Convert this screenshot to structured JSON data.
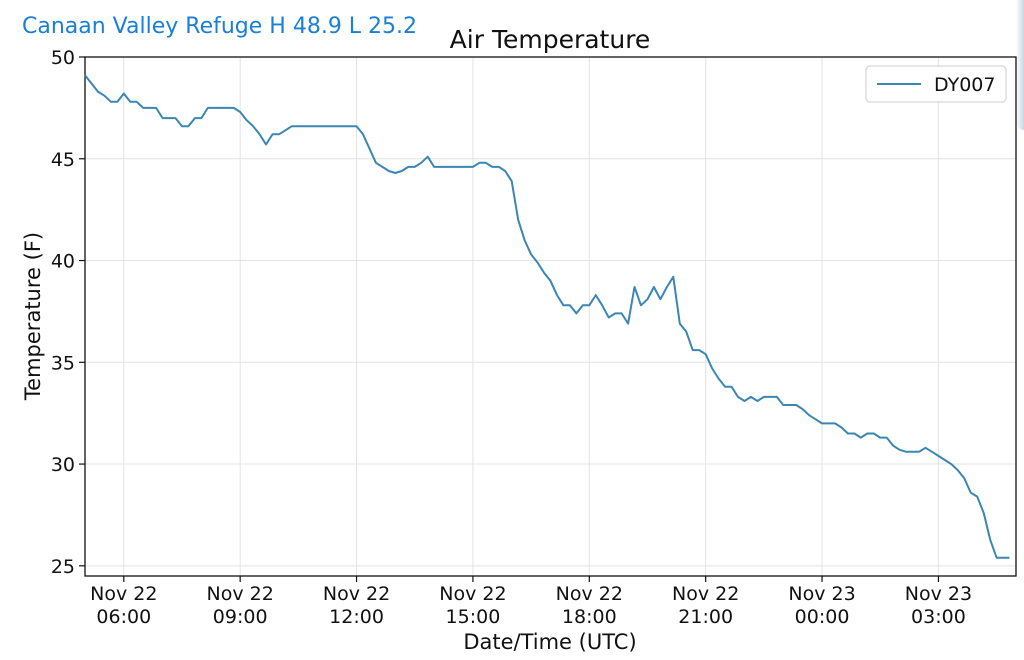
{
  "header": {
    "station_text": "Canaan Valley Refuge H 48.9 L 25.2"
  },
  "chart_data": {
    "type": "line",
    "title": "Air Temperature",
    "xlabel": "Date/Time (UTC)",
    "ylabel": "Temperature (F)",
    "ylim": [
      24.5,
      50
    ],
    "xlim": [
      "2023-11-22T05:00",
      "2023-11-23T05:00"
    ],
    "yticks": [
      25,
      30,
      35,
      40,
      45,
      50
    ],
    "xticks": [
      {
        "t": "2023-11-22T06:00",
        "line1": "Nov 22",
        "line2": "06:00"
      },
      {
        "t": "2023-11-22T09:00",
        "line1": "Nov 22",
        "line2": "09:00"
      },
      {
        "t": "2023-11-22T12:00",
        "line1": "Nov 22",
        "line2": "12:00"
      },
      {
        "t": "2023-11-22T15:00",
        "line1": "Nov 22",
        "line2": "15:00"
      },
      {
        "t": "2023-11-22T18:00",
        "line1": "Nov 22",
        "line2": "18:00"
      },
      {
        "t": "2023-11-22T21:00",
        "line1": "Nov 22",
        "line2": "21:00"
      },
      {
        "t": "2023-11-23T00:00",
        "line1": "Nov 23",
        "line2": "00:00"
      },
      {
        "t": "2023-11-23T03:00",
        "line1": "Nov 23",
        "line2": "03:00"
      }
    ],
    "grid": true,
    "legend_position": "top-right",
    "series": [
      {
        "name": "DY007",
        "color": "#3b86b3",
        "points": [
          [
            "2023-11-22T05:00",
            49.1
          ],
          [
            "2023-11-22T05:10",
            48.7
          ],
          [
            "2023-11-22T05:20",
            48.3
          ],
          [
            "2023-11-22T05:30",
            48.1
          ],
          [
            "2023-11-22T05:40",
            47.8
          ],
          [
            "2023-11-22T05:50",
            47.8
          ],
          [
            "2023-11-22T06:00",
            48.2
          ],
          [
            "2023-11-22T06:10",
            47.8
          ],
          [
            "2023-11-22T06:20",
            47.8
          ],
          [
            "2023-11-22T06:30",
            47.5
          ],
          [
            "2023-11-22T06:40",
            47.5
          ],
          [
            "2023-11-22T06:50",
            47.5
          ],
          [
            "2023-11-22T07:00",
            47.0
          ],
          [
            "2023-11-22T07:10",
            47.0
          ],
          [
            "2023-11-22T07:20",
            47.0
          ],
          [
            "2023-11-22T07:30",
            46.6
          ],
          [
            "2023-11-22T07:40",
            46.6
          ],
          [
            "2023-11-22T07:50",
            47.0
          ],
          [
            "2023-11-22T08:00",
            47.0
          ],
          [
            "2023-11-22T08:10",
            47.5
          ],
          [
            "2023-11-22T08:20",
            47.5
          ],
          [
            "2023-11-22T08:30",
            47.5
          ],
          [
            "2023-11-22T08:40",
            47.5
          ],
          [
            "2023-11-22T08:50",
            47.5
          ],
          [
            "2023-11-22T09:00",
            47.3
          ],
          [
            "2023-11-22T09:10",
            46.9
          ],
          [
            "2023-11-22T09:20",
            46.6
          ],
          [
            "2023-11-22T09:30",
            46.2
          ],
          [
            "2023-11-22T09:40",
            45.7
          ],
          [
            "2023-11-22T09:50",
            46.2
          ],
          [
            "2023-11-22T10:00",
            46.2
          ],
          [
            "2023-11-22T10:10",
            46.4
          ],
          [
            "2023-11-22T10:20",
            46.6
          ],
          [
            "2023-11-22T10:30",
            46.6
          ],
          [
            "2023-11-22T10:40",
            46.6
          ],
          [
            "2023-11-22T10:50",
            46.6
          ],
          [
            "2023-11-22T11:00",
            46.6
          ],
          [
            "2023-11-22T11:10",
            46.6
          ],
          [
            "2023-11-22T11:20",
            46.6
          ],
          [
            "2023-11-22T11:30",
            46.6
          ],
          [
            "2023-11-22T11:40",
            46.6
          ],
          [
            "2023-11-22T11:50",
            46.6
          ],
          [
            "2023-11-22T12:00",
            46.6
          ],
          [
            "2023-11-22T12:10",
            46.2
          ],
          [
            "2023-11-22T12:20",
            45.5
          ],
          [
            "2023-11-22T12:30",
            44.8
          ],
          [
            "2023-11-22T12:40",
            44.6
          ],
          [
            "2023-11-22T12:50",
            44.4
          ],
          [
            "2023-11-22T13:00",
            44.3
          ],
          [
            "2023-11-22T13:10",
            44.4
          ],
          [
            "2023-11-22T13:20",
            44.6
          ],
          [
            "2023-11-22T13:30",
            44.6
          ],
          [
            "2023-11-22T13:40",
            44.8
          ],
          [
            "2023-11-22T13:50",
            45.1
          ],
          [
            "2023-11-22T14:00",
            44.6
          ],
          [
            "2023-11-22T14:10",
            44.6
          ],
          [
            "2023-11-22T14:20",
            44.6
          ],
          [
            "2023-11-22T14:30",
            44.6
          ],
          [
            "2023-11-22T14:40",
            44.6
          ],
          [
            "2023-11-22T14:50",
            44.6
          ],
          [
            "2023-11-22T15:00",
            44.6
          ],
          [
            "2023-11-22T15:10",
            44.8
          ],
          [
            "2023-11-22T15:20",
            44.8
          ],
          [
            "2023-11-22T15:30",
            44.6
          ],
          [
            "2023-11-22T15:40",
            44.6
          ],
          [
            "2023-11-22T15:50",
            44.4
          ],
          [
            "2023-11-22T16:00",
            43.9
          ],
          [
            "2023-11-22T16:10",
            42.0
          ],
          [
            "2023-11-22T16:20",
            41.0
          ],
          [
            "2023-11-22T16:30",
            40.3
          ],
          [
            "2023-11-22T16:40",
            39.9
          ],
          [
            "2023-11-22T16:50",
            39.4
          ],
          [
            "2023-11-22T17:00",
            39.0
          ],
          [
            "2023-11-22T17:10",
            38.3
          ],
          [
            "2023-11-22T17:20",
            37.8
          ],
          [
            "2023-11-22T17:30",
            37.8
          ],
          [
            "2023-11-22T17:40",
            37.4
          ],
          [
            "2023-11-22T17:50",
            37.8
          ],
          [
            "2023-11-22T18:00",
            37.8
          ],
          [
            "2023-11-22T18:10",
            38.3
          ],
          [
            "2023-11-22T18:20",
            37.8
          ],
          [
            "2023-11-22T18:30",
            37.2
          ],
          [
            "2023-11-22T18:40",
            37.4
          ],
          [
            "2023-11-22T18:50",
            37.4
          ],
          [
            "2023-11-22T19:00",
            36.9
          ],
          [
            "2023-11-22T19:10",
            38.7
          ],
          [
            "2023-11-22T19:20",
            37.8
          ],
          [
            "2023-11-22T19:30",
            38.1
          ],
          [
            "2023-11-22T19:40",
            38.7
          ],
          [
            "2023-11-22T19:50",
            38.1
          ],
          [
            "2023-11-22T20:00",
            38.7
          ],
          [
            "2023-11-22T20:10",
            39.2
          ],
          [
            "2023-11-22T20:20",
            36.9
          ],
          [
            "2023-11-22T20:30",
            36.5
          ],
          [
            "2023-11-22T20:40",
            35.6
          ],
          [
            "2023-11-22T20:50",
            35.6
          ],
          [
            "2023-11-22T21:00",
            35.4
          ],
          [
            "2023-11-22T21:10",
            34.7
          ],
          [
            "2023-11-22T21:20",
            34.2
          ],
          [
            "2023-11-22T21:30",
            33.8
          ],
          [
            "2023-11-22T21:40",
            33.8
          ],
          [
            "2023-11-22T21:50",
            33.3
          ],
          [
            "2023-11-22T22:00",
            33.1
          ],
          [
            "2023-11-22T22:10",
            33.3
          ],
          [
            "2023-11-22T22:20",
            33.1
          ],
          [
            "2023-11-22T22:30",
            33.3
          ],
          [
            "2023-11-22T22:40",
            33.3
          ],
          [
            "2023-11-22T22:50",
            33.3
          ],
          [
            "2023-11-22T23:00",
            32.9
          ],
          [
            "2023-11-22T23:10",
            32.9
          ],
          [
            "2023-11-22T23:20",
            32.9
          ],
          [
            "2023-11-22T23:30",
            32.7
          ],
          [
            "2023-11-22T23:40",
            32.4
          ],
          [
            "2023-11-22T23:50",
            32.2
          ],
          [
            "2023-11-23T00:00",
            32.0
          ],
          [
            "2023-11-23T00:10",
            32.0
          ],
          [
            "2023-11-23T00:20",
            32.0
          ],
          [
            "2023-11-23T00:30",
            31.8
          ],
          [
            "2023-11-23T00:40",
            31.5
          ],
          [
            "2023-11-23T00:50",
            31.5
          ],
          [
            "2023-11-23T01:00",
            31.3
          ],
          [
            "2023-11-23T01:10",
            31.5
          ],
          [
            "2023-11-23T01:20",
            31.5
          ],
          [
            "2023-11-23T01:30",
            31.3
          ],
          [
            "2023-11-23T01:40",
            31.3
          ],
          [
            "2023-11-23T01:50",
            30.9
          ],
          [
            "2023-11-23T02:00",
            30.7
          ],
          [
            "2023-11-23T02:10",
            30.6
          ],
          [
            "2023-11-23T02:20",
            30.6
          ],
          [
            "2023-11-23T02:30",
            30.6
          ],
          [
            "2023-11-23T02:40",
            30.8
          ],
          [
            "2023-11-23T02:50",
            30.6
          ],
          [
            "2023-11-23T03:00",
            30.4
          ],
          [
            "2023-11-23T03:10",
            30.2
          ],
          [
            "2023-11-23T03:20",
            30.0
          ],
          [
            "2023-11-23T03:30",
            29.7
          ],
          [
            "2023-11-23T03:40",
            29.3
          ],
          [
            "2023-11-23T03:50",
            28.6
          ],
          [
            "2023-11-23T04:00",
            28.4
          ],
          [
            "2023-11-23T04:10",
            27.6
          ],
          [
            "2023-11-23T04:20",
            26.3
          ],
          [
            "2023-11-23T04:30",
            25.4
          ],
          [
            "2023-11-23T04:40",
            25.4
          ],
          [
            "2023-11-23T04:50",
            25.4
          ]
        ]
      }
    ]
  }
}
